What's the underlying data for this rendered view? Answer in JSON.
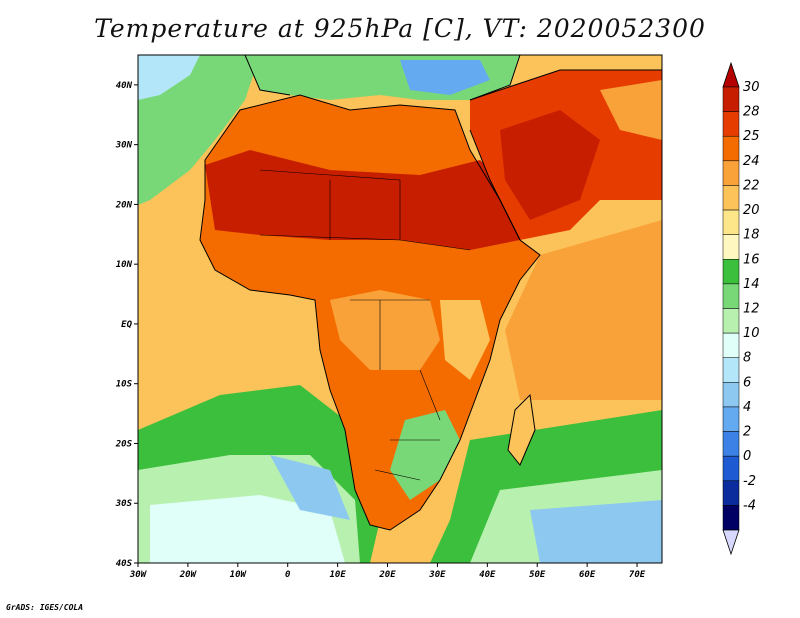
{
  "title": "Temperature at 925hPa [C], VT: 2020052300",
  "credit": "GrADS: IGES/COLA",
  "map": {
    "lon_range": [
      -30,
      75
    ],
    "lat_range": [
      -40,
      45
    ],
    "lon_ticks": [
      "30W",
      "20W",
      "10W",
      "0",
      "10E",
      "20E",
      "30E",
      "40E",
      "50E",
      "60E",
      "70E"
    ],
    "lat_ticks": [
      "40N",
      "30N",
      "20N",
      "10N",
      "EQ",
      "10S",
      "20S",
      "30S",
      "40S"
    ]
  },
  "colorbar": {
    "labels": [
      "30",
      "28",
      "25",
      "24",
      "22",
      "20",
      "18",
      "16",
      "14",
      "12",
      "10",
      "8",
      "6",
      "4",
      "2",
      "0",
      "-2",
      "-4"
    ],
    "colors": [
      "#c81e00",
      "#e63c00",
      "#f46c00",
      "#f9a23a",
      "#fbc35a",
      "#fde68a",
      "#fff7c0",
      "#3cbf3c",
      "#78d878",
      "#b8f0b0",
      "#e0fff8",
      "#b4e6fa",
      "#8cc8f0",
      "#64aaf0",
      "#3c82e6",
      "#1e5ad2",
      "#0a2c9c",
      "#000064"
    ],
    "arrow_top_color": "#b40000",
    "arrow_bottom_color": "#d8d8ff"
  },
  "colors": {
    "ocean_cold": "#8cc8f0",
    "ocean_mild": "#78d878",
    "ocean_warm": "#fbc35a",
    "land_hot": "#e63c00",
    "land_hottest": "#c81e00",
    "coastline": "#000000"
  }
}
